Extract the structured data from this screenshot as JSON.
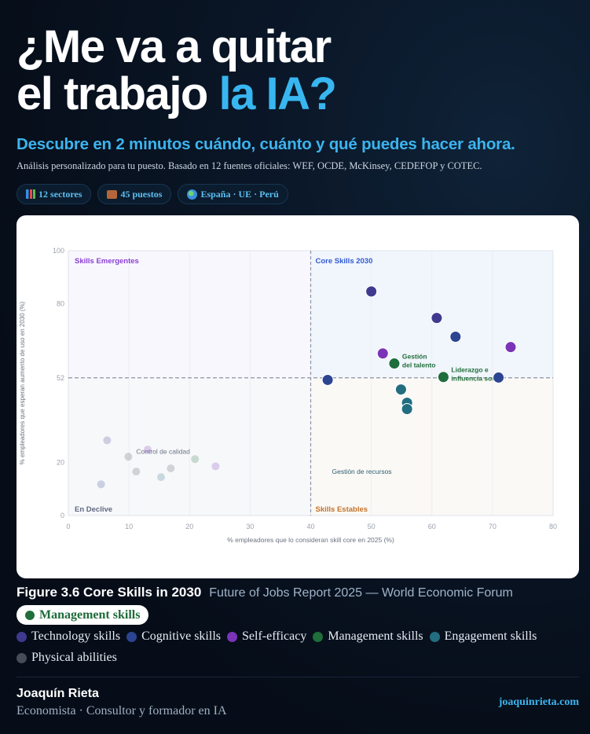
{
  "header": {
    "title_line1": "¿Me va a quitar",
    "title_line2_prefix": "el trabajo ",
    "title_line2_accent": "la IA?",
    "subtitle": "Descubre en 2 minutos cuándo, cuánto y qué puedes hacer ahora.",
    "description": "Análisis personalizado para tu puesto. Basado en 12 fuentes oficiales: WEF, OCDE, McKinsey, CEDEFOP y COTEC.",
    "pills": [
      {
        "icon": "bar-chart-icon",
        "label": "12 sectores"
      },
      {
        "icon": "briefcase-icon",
        "label": "45 puestos"
      },
      {
        "icon": "globe-icon",
        "label": "España · UE · Perú"
      }
    ]
  },
  "chart_data": {
    "type": "scatter",
    "title": "Figure 3.6 Core Skills in 2030",
    "source": "Future of Jobs Report 2025 — World Economic Forum",
    "xlabel": "% empleadores que lo consideran skill core en 2025 (%)",
    "ylabel": "% empleadores que esperan aumento de uso en 2030 (%)",
    "xlim": [
      0,
      80
    ],
    "ylim": [
      0,
      100
    ],
    "x_ticks": [
      0,
      10,
      20,
      30,
      40,
      50,
      60,
      70,
      80
    ],
    "y_ticks": [
      0,
      20,
      52,
      80,
      100
    ],
    "x_threshold": 40,
    "y_threshold": 52,
    "grid": true,
    "quadrants": [
      {
        "label": "Skills Emergentes",
        "position": "top-left",
        "color": "#8b3fd6"
      },
      {
        "label": "Core Skills 2030",
        "position": "top-right",
        "color": "#2f5bd3"
      },
      {
        "label": "En Declive",
        "position": "bottom-left",
        "color": "#5f6b80"
      },
      {
        "label": "Skills Estables",
        "position": "bottom-right",
        "color": "#c5722b"
      }
    ],
    "highlighted_category": "Management skills",
    "series": [
      {
        "name": "Technology skills",
        "color": "#3f3a8f",
        "points": [
          {
            "x": 50,
            "y": 84.6,
            "active": true
          },
          {
            "x": 60.8,
            "y": 74.6,
            "active": true
          },
          {
            "x": 6.4,
            "y": 28.4,
            "active": false
          }
        ]
      },
      {
        "name": "Cognitive skills",
        "color": "#2c4592",
        "points": [
          {
            "x": 63.9,
            "y": 67.5,
            "active": true
          },
          {
            "x": 71,
            "y": 52.1,
            "active": true
          },
          {
            "x": 42.8,
            "y": 51.2,
            "active": true
          },
          {
            "x": 5.4,
            "y": 11.8,
            "active": false
          }
        ]
      },
      {
        "name": "Self-efficacy",
        "color": "#7b33b8",
        "points": [
          {
            "x": 73,
            "y": 63.6,
            "active": true
          },
          {
            "x": 51.9,
            "y": 61.2,
            "active": true
          },
          {
            "x": 13.1,
            "y": 24.9,
            "active": false
          },
          {
            "x": 24.3,
            "y": 18.6,
            "active": false
          }
        ]
      },
      {
        "name": "Management skills",
        "color": "#1f6e3b",
        "points": [
          {
            "x": 53.8,
            "y": 57.4,
            "label": "Gestión del talento",
            "active": true
          },
          {
            "x": 61.9,
            "y": 52.3,
            "label": "Liderazgo e influencia social",
            "active": true
          },
          {
            "x": 20.9,
            "y": 21.3,
            "active": false
          }
        ]
      },
      {
        "name": "Engagement skills",
        "color": "#226d80",
        "points": [
          {
            "x": 54.9,
            "y": 47.6,
            "active": true
          },
          {
            "x": 55.9,
            "y": 42.6,
            "active": true
          },
          {
            "x": 55.9,
            "y": 40.2,
            "active": true
          },
          {
            "x": 15.3,
            "y": 14.5,
            "active": false
          }
        ]
      },
      {
        "name": "Physical abilities",
        "color": "#474c58",
        "points": [
          {
            "x": 9.9,
            "y": 22.2,
            "active": false
          },
          {
            "x": 11.2,
            "y": 16.6,
            "active": false
          },
          {
            "x": 16.9,
            "y": 17.8,
            "active": false
          }
        ]
      }
    ],
    "annotations": [
      {
        "text": "Control de calidad",
        "x": 11.2,
        "y": 24.2,
        "color": "#6b7385"
      },
      {
        "text": "Gestión de recursos",
        "x": 43.5,
        "y": 16.6,
        "color": "#2d5f72"
      }
    ]
  },
  "caption": {
    "figure": "Figure 3.6 Core Skills in 2030",
    "source": "Future of Jobs Report 2025 — World Economic Forum"
  },
  "filter": {
    "label": "Management skills",
    "color": "#1f6e3b"
  },
  "legend": [
    {
      "label": "Technology skills",
      "color": "#3f3a8f"
    },
    {
      "label": "Cognitive skills",
      "color": "#2c4592"
    },
    {
      "label": "Self-efficacy",
      "color": "#7b33b8"
    },
    {
      "label": "Management skills",
      "color": "#1f6e3b"
    },
    {
      "label": "Engagement skills",
      "color": "#226d80"
    },
    {
      "label": "Physical abilities",
      "color": "#474c58"
    }
  ],
  "footer": {
    "author_name": "Joaquín Rieta",
    "author_role": "Economista · Consultor y formador en IA",
    "website": "joaquinrieta.com"
  }
}
